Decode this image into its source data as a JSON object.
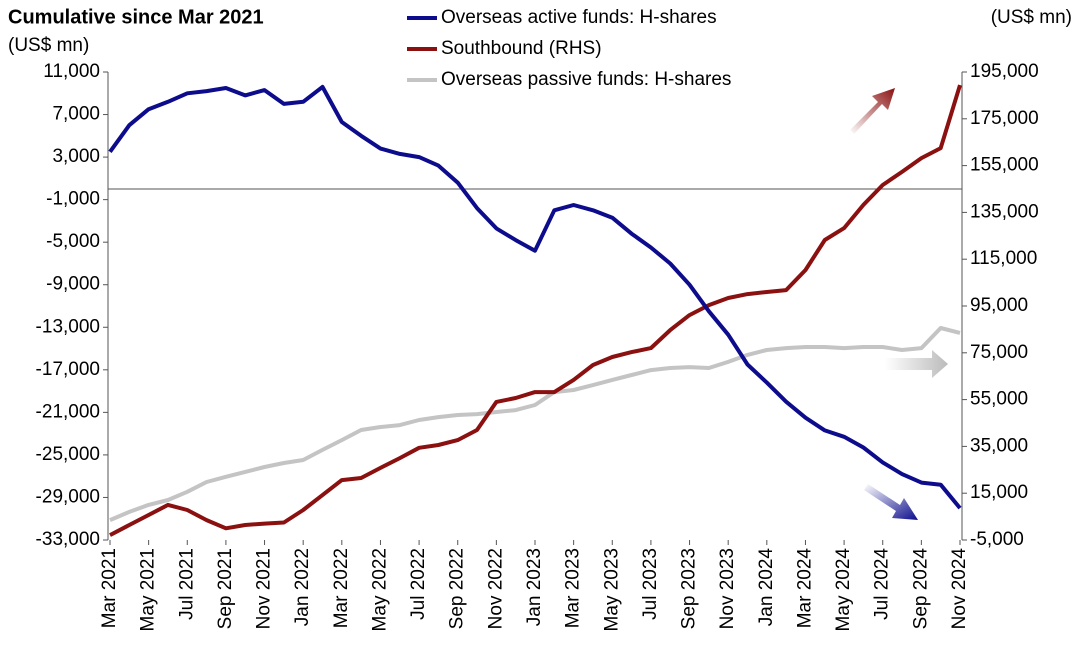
{
  "chart_data": {
    "type": "line",
    "title": "Cumulative since Mar 2021",
    "y_label": "(US$ mn)",
    "y2_label": "(US$ mn)",
    "categories": [
      "Mar 2021",
      null,
      "May 2021",
      null,
      "Jul 2021",
      null,
      "Sep 2021",
      null,
      "Nov 2021",
      null,
      "Jan 2022",
      null,
      "Mar 2022",
      null,
      "May 2022",
      null,
      "Jul 2022",
      null,
      "Sep 2022",
      null,
      "Nov 2022",
      null,
      "Jan 2023",
      null,
      "Mar 2023",
      null,
      "May 2023",
      null,
      "Jul 2023",
      null,
      "Sep 2023",
      null,
      "Nov 2023",
      null,
      "Jan 2024",
      null,
      "Mar 2024",
      null,
      "May 2024",
      null,
      "Jul 2024",
      null,
      "Sep 2024",
      null,
      "Nov 2024"
    ],
    "ylim": [
      -33000,
      11000
    ],
    "yticks": [
      {
        "value": 11000,
        "label": "11,000"
      },
      {
        "value": 7000,
        "label": "7,000"
      },
      {
        "value": 3000,
        "label": "3,000"
      },
      {
        "value": -1000,
        "label": "-1,000"
      },
      {
        "value": -5000,
        "label": "-5,000"
      },
      {
        "value": -9000,
        "label": "-9,000"
      },
      {
        "value": -13000,
        "label": "-13,000"
      },
      {
        "value": -17000,
        "label": "-17,000"
      },
      {
        "value": -21000,
        "label": "-21,000"
      },
      {
        "value": -25000,
        "label": "-25,000"
      },
      {
        "value": -29000,
        "label": "-29,000"
      },
      {
        "value": -33000,
        "label": "-33,000"
      }
    ],
    "y_negative_tick_color": "#e00000",
    "y2lim": [
      -5000,
      195000
    ],
    "y2ticks": [
      {
        "value": 195000,
        "label": "195,000"
      },
      {
        "value": 175000,
        "label": "175,000"
      },
      {
        "value": 155000,
        "label": "155,000"
      },
      {
        "value": 135000,
        "label": "135,000"
      },
      {
        "value": 115000,
        "label": "115,000"
      },
      {
        "value": 95000,
        "label": "95,000"
      },
      {
        "value": 75000,
        "label": "75,000"
      },
      {
        "value": 55000,
        "label": "55,000"
      },
      {
        "value": 35000,
        "label": "35,000"
      },
      {
        "value": 15000,
        "label": "15,000"
      },
      {
        "value": -5000,
        "label": "-5,000"
      }
    ],
    "y2_negative_tick_color": "#e00000",
    "grid": false,
    "legend": "top",
    "series": [
      {
        "name": "Overseas active funds: H-shares",
        "color": "#0c0c8c",
        "axis": "y",
        "values": [
          3500,
          6000,
          7500,
          8200,
          9000,
          9200,
          9500,
          8800,
          9300,
          8000,
          8200,
          9600,
          6300,
          5000,
          3800,
          3300,
          3000,
          2200,
          600,
          -1800,
          -3700,
          -4800,
          -5800,
          -2000,
          -1500,
          -2000,
          -2700,
          -4200,
          -5500,
          -7000,
          -9000,
          -11500,
          -13700,
          -16500,
          -18200,
          -20000,
          -21500,
          -22700,
          -23300,
          -24300,
          -25700,
          -26800,
          -27600,
          -27800,
          -30000
        ]
      },
      {
        "name": "Southbound (RHS)",
        "color": "#8b1010",
        "axis": "y2",
        "values": [
          -2900,
          1400,
          5700,
          10000,
          7800,
          3500,
          0,
          1400,
          2000,
          2500,
          7800,
          14200,
          20600,
          21500,
          25800,
          30000,
          34400,
          35600,
          37700,
          42000,
          54000,
          55700,
          58200,
          58200,
          63400,
          69800,
          73200,
          75300,
          77000,
          84700,
          91100,
          95400,
          98400,
          100100,
          101000,
          101800,
          110400,
          123200,
          128300,
          138200,
          146700,
          152300,
          158200,
          162500,
          189400
        ]
      },
      {
        "name": "Overseas passive funds: H-shares",
        "color": "#c4c4c4",
        "axis": "y2",
        "values": [
          3500,
          7000,
          10000,
          12100,
          15600,
          19800,
          22000,
          24100,
          26200,
          27900,
          29200,
          33500,
          37700,
          42000,
          43300,
          44100,
          46300,
          47500,
          48400,
          48800,
          49700,
          50500,
          52700,
          58200,
          59100,
          61200,
          63400,
          65500,
          67600,
          68500,
          68900,
          68500,
          71100,
          74100,
          76200,
          77000,
          77500,
          77500,
          77000,
          77500,
          77500,
          76200,
          77000,
          85600,
          83500
        ]
      }
    ]
  }
}
